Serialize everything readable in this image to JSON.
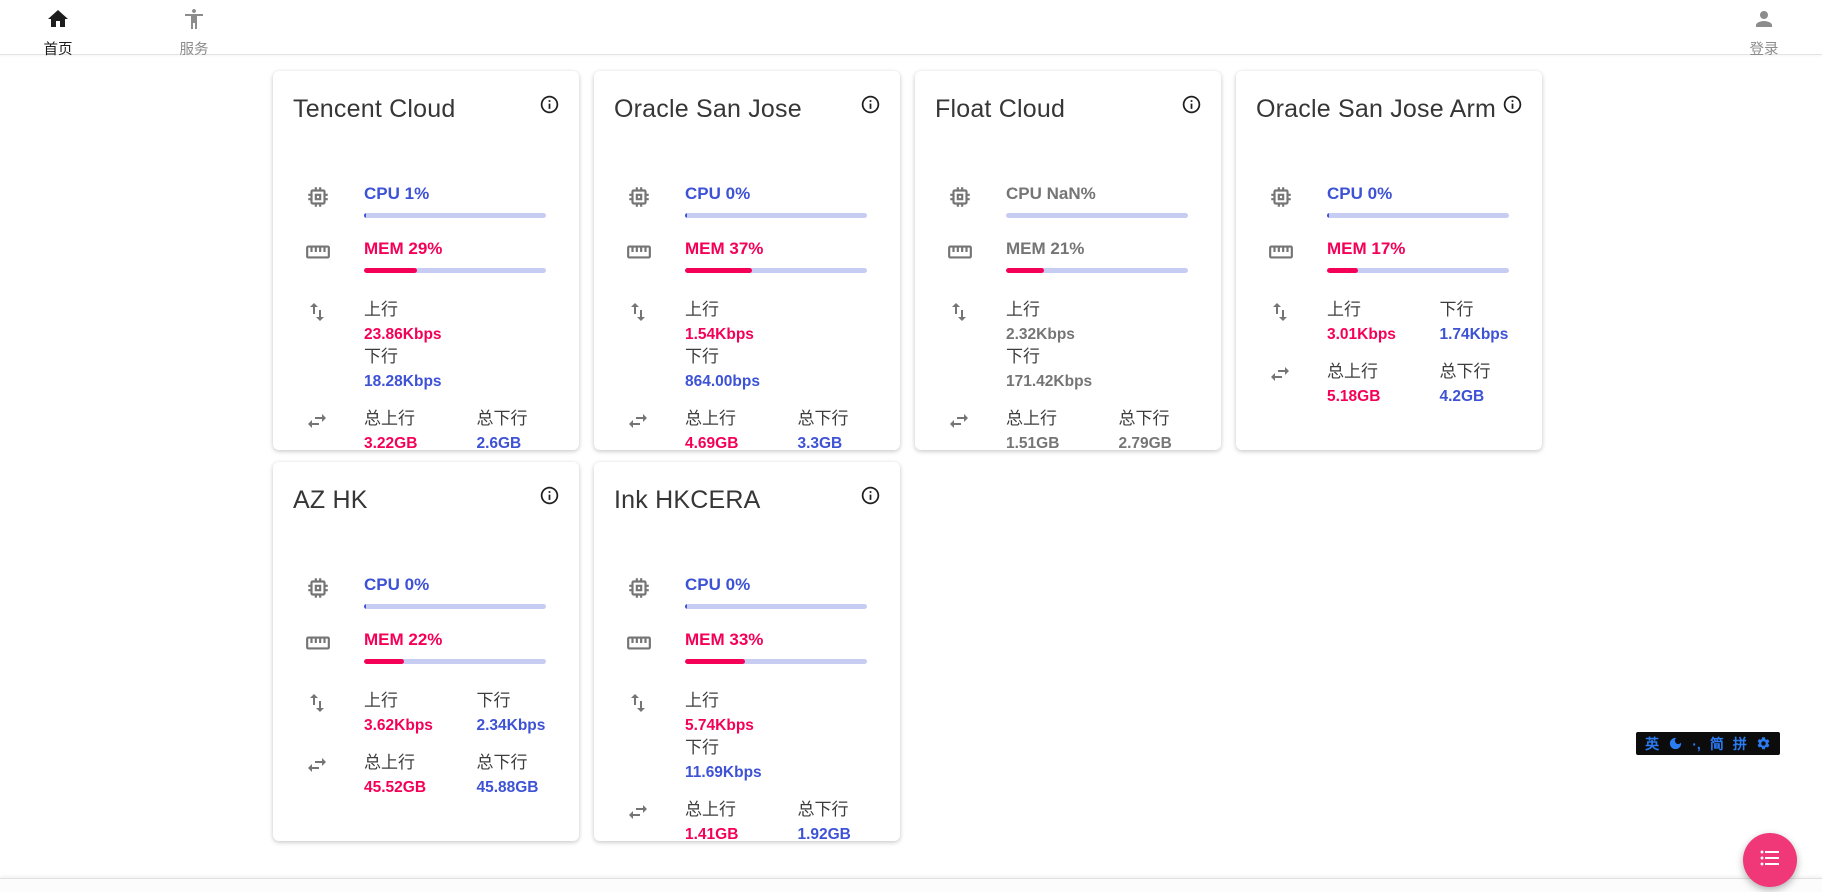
{
  "navbar": {
    "home": {
      "label": "首页"
    },
    "services": {
      "label": "服务"
    },
    "login": {
      "label": "登录"
    }
  },
  "labels": {
    "cpu_prefix": "CPU",
    "mem_prefix": "MEM",
    "percent_suffix": "%",
    "up": "上行",
    "down": "下行",
    "total_up": "总上行",
    "total_down": "总下行"
  },
  "servers": [
    {
      "name": "Tencent Cloud",
      "cpu": "1",
      "mem": "29",
      "up": "23.86Kbps",
      "down": "18.28Kbps",
      "total_up": "3.22GB",
      "total_down": "2.6GB",
      "online": true
    },
    {
      "name": "Oracle San Jose",
      "cpu": "0",
      "mem": "37",
      "up": "1.54Kbps",
      "down": "864.00bps",
      "total_up": "4.69GB",
      "total_down": "3.3GB",
      "online": true
    },
    {
      "name": "Float Cloud",
      "cpu": "NaN",
      "mem": "21",
      "up": "2.32Kbps",
      "down": "171.42Kbps",
      "total_up": "1.51GB",
      "total_down": "2.79GB",
      "online": false
    },
    {
      "name": "Oracle San Jose Arm",
      "cpu": "0",
      "mem": "17",
      "up": "3.01Kbps",
      "down": "1.74Kbps",
      "total_up": "5.18GB",
      "total_down": "4.2GB",
      "online": true
    },
    {
      "name": "AZ HK",
      "cpu": "0",
      "mem": "22",
      "up": "3.62Kbps",
      "down": "2.34Kbps",
      "total_up": "45.52GB",
      "total_down": "45.88GB",
      "online": true
    },
    {
      "name": "Ink HKCERA",
      "cpu": "0",
      "mem": "33",
      "up": "5.74Kbps",
      "down": "11.69Kbps",
      "total_up": "1.41GB",
      "total_down": "1.92GB",
      "online": true
    }
  ],
  "ime_bar": {
    "lang": "英",
    "punctuation": "·,",
    "simplified": "简",
    "pinyin": "拼"
  },
  "colors": {
    "accent_blue": "#3d52d5",
    "accent_pink": "#f50057",
    "bar_track": "#c7ccf2",
    "offline_gray": "#757575",
    "fab_pink": "#f03778",
    "ime_blue": "#2b7bf3"
  }
}
